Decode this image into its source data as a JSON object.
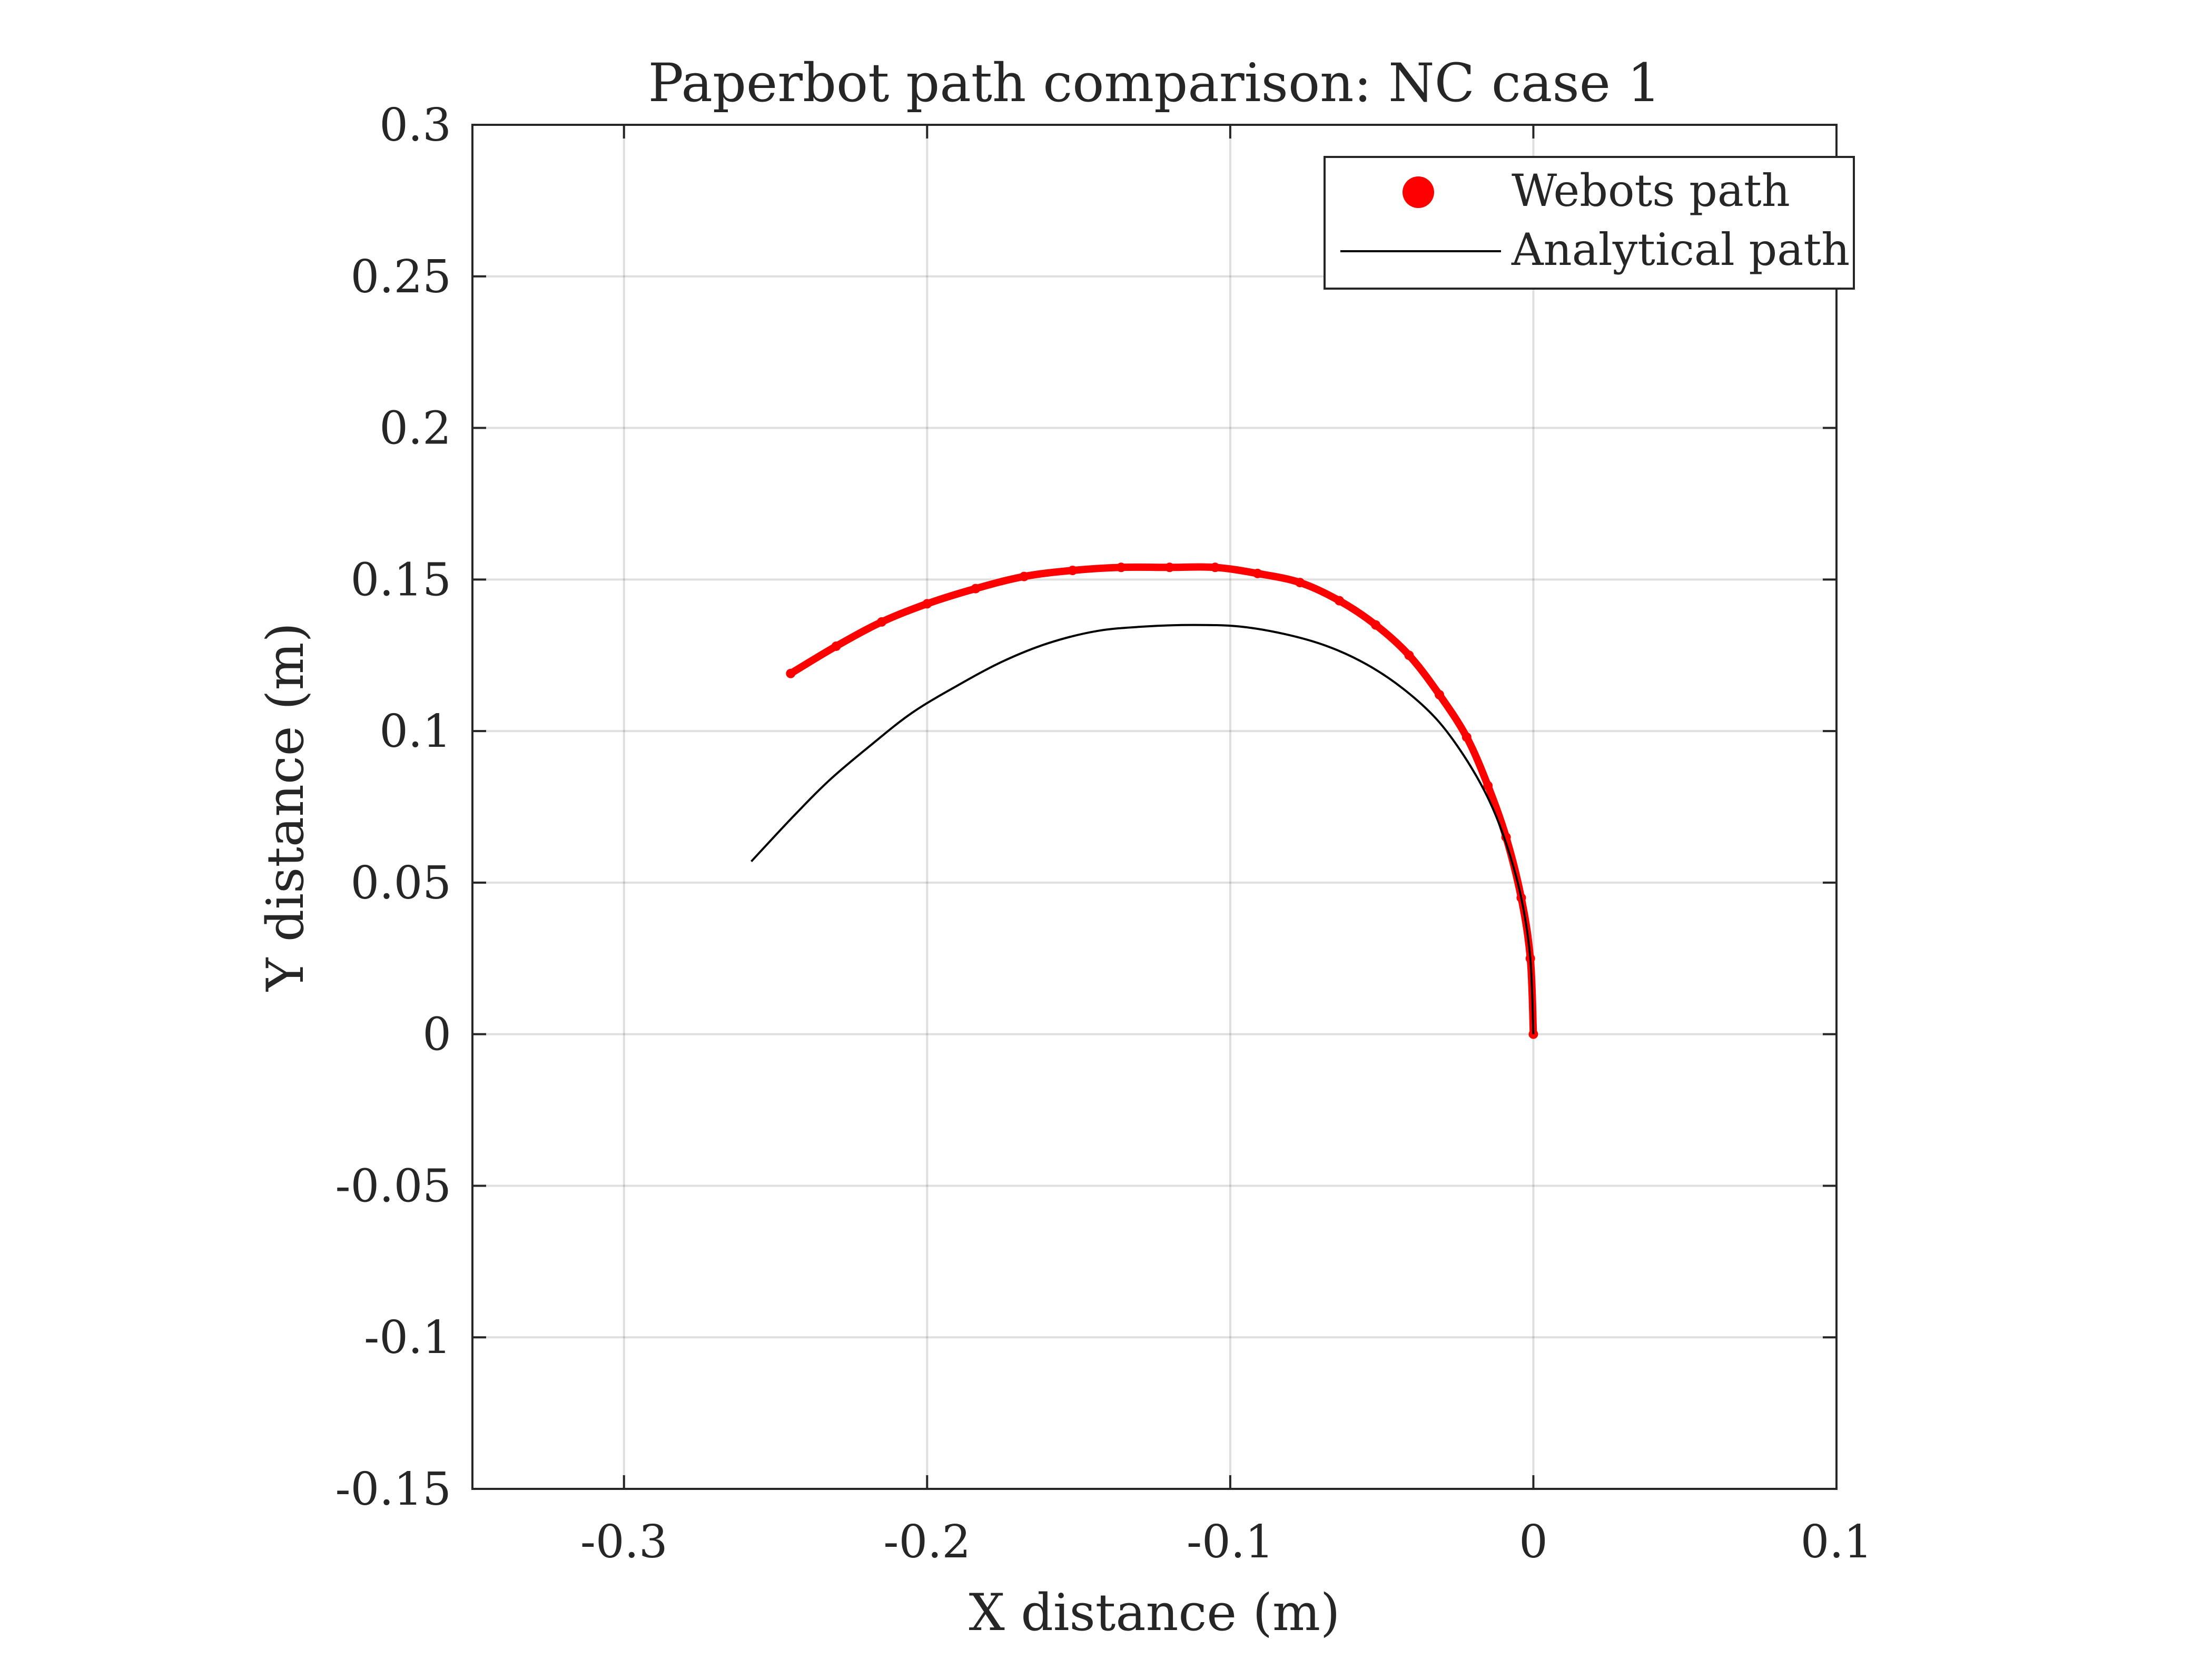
{
  "chart_data": {
    "type": "line",
    "title": "Paperbot path comparison: NC case 1",
    "xlabel": "X distance (m)",
    "ylabel": "Y distance (m)",
    "xlim": [
      -0.35,
      0.1
    ],
    "ylim": [
      -0.15,
      0.3
    ],
    "xticks": [
      -0.3,
      -0.2,
      -0.1,
      0,
      0.1
    ],
    "xtick_labels": [
      "-0.3",
      "-0.2",
      "-0.1",
      "0",
      "0.1"
    ],
    "yticks": [
      -0.15,
      -0.1,
      -0.05,
      0,
      0.05,
      0.1,
      0.15,
      0.2,
      0.25,
      0.3
    ],
    "ytick_labels": [
      "-0.15",
      "-0.1",
      "-0.05",
      "0",
      "0.05",
      "0.1",
      "0.15",
      "0.2",
      "0.25",
      "0.3"
    ],
    "grid": true,
    "legend_position": "top-right",
    "series": [
      {
        "name": "Webots path",
        "style": "markers",
        "color": "#ff0000",
        "x": [
          0,
          -0.001,
          -0.004,
          -0.009,
          -0.015,
          -0.022,
          -0.031,
          -0.041,
          -0.052,
          -0.064,
          -0.077,
          -0.091,
          -0.105,
          -0.12,
          -0.136,
          -0.152,
          -0.168,
          -0.184,
          -0.2,
          -0.215,
          -0.23,
          -0.245
        ],
        "y": [
          0,
          0.025,
          0.045,
          0.065,
          0.082,
          0.098,
          0.112,
          0.125,
          0.135,
          0.143,
          0.149,
          0.152,
          0.154,
          0.154,
          0.154,
          0.153,
          0.151,
          0.147,
          0.142,
          0.136,
          0.128,
          0.119
        ]
      },
      {
        "name": "Analytical path",
        "style": "line",
        "color": "#000000",
        "x": [
          0,
          -0.001,
          -0.004,
          -0.009,
          -0.015,
          -0.023,
          -0.032,
          -0.043,
          -0.055,
          -0.068,
          -0.082,
          -0.097,
          -0.112,
          -0.128,
          -0.144,
          -0.16,
          -0.175,
          -0.19,
          -0.205,
          -0.219,
          -0.232,
          -0.244,
          -0.258
        ],
        "y": [
          0,
          0.025,
          0.045,
          0.063,
          0.078,
          0.092,
          0.104,
          0.114,
          0.122,
          0.128,
          0.132,
          0.1345,
          0.135,
          0.1345,
          0.133,
          0.129,
          0.123,
          0.115,
          0.106,
          0.095,
          0.084,
          0.072,
          0.057
        ]
      }
    ]
  }
}
